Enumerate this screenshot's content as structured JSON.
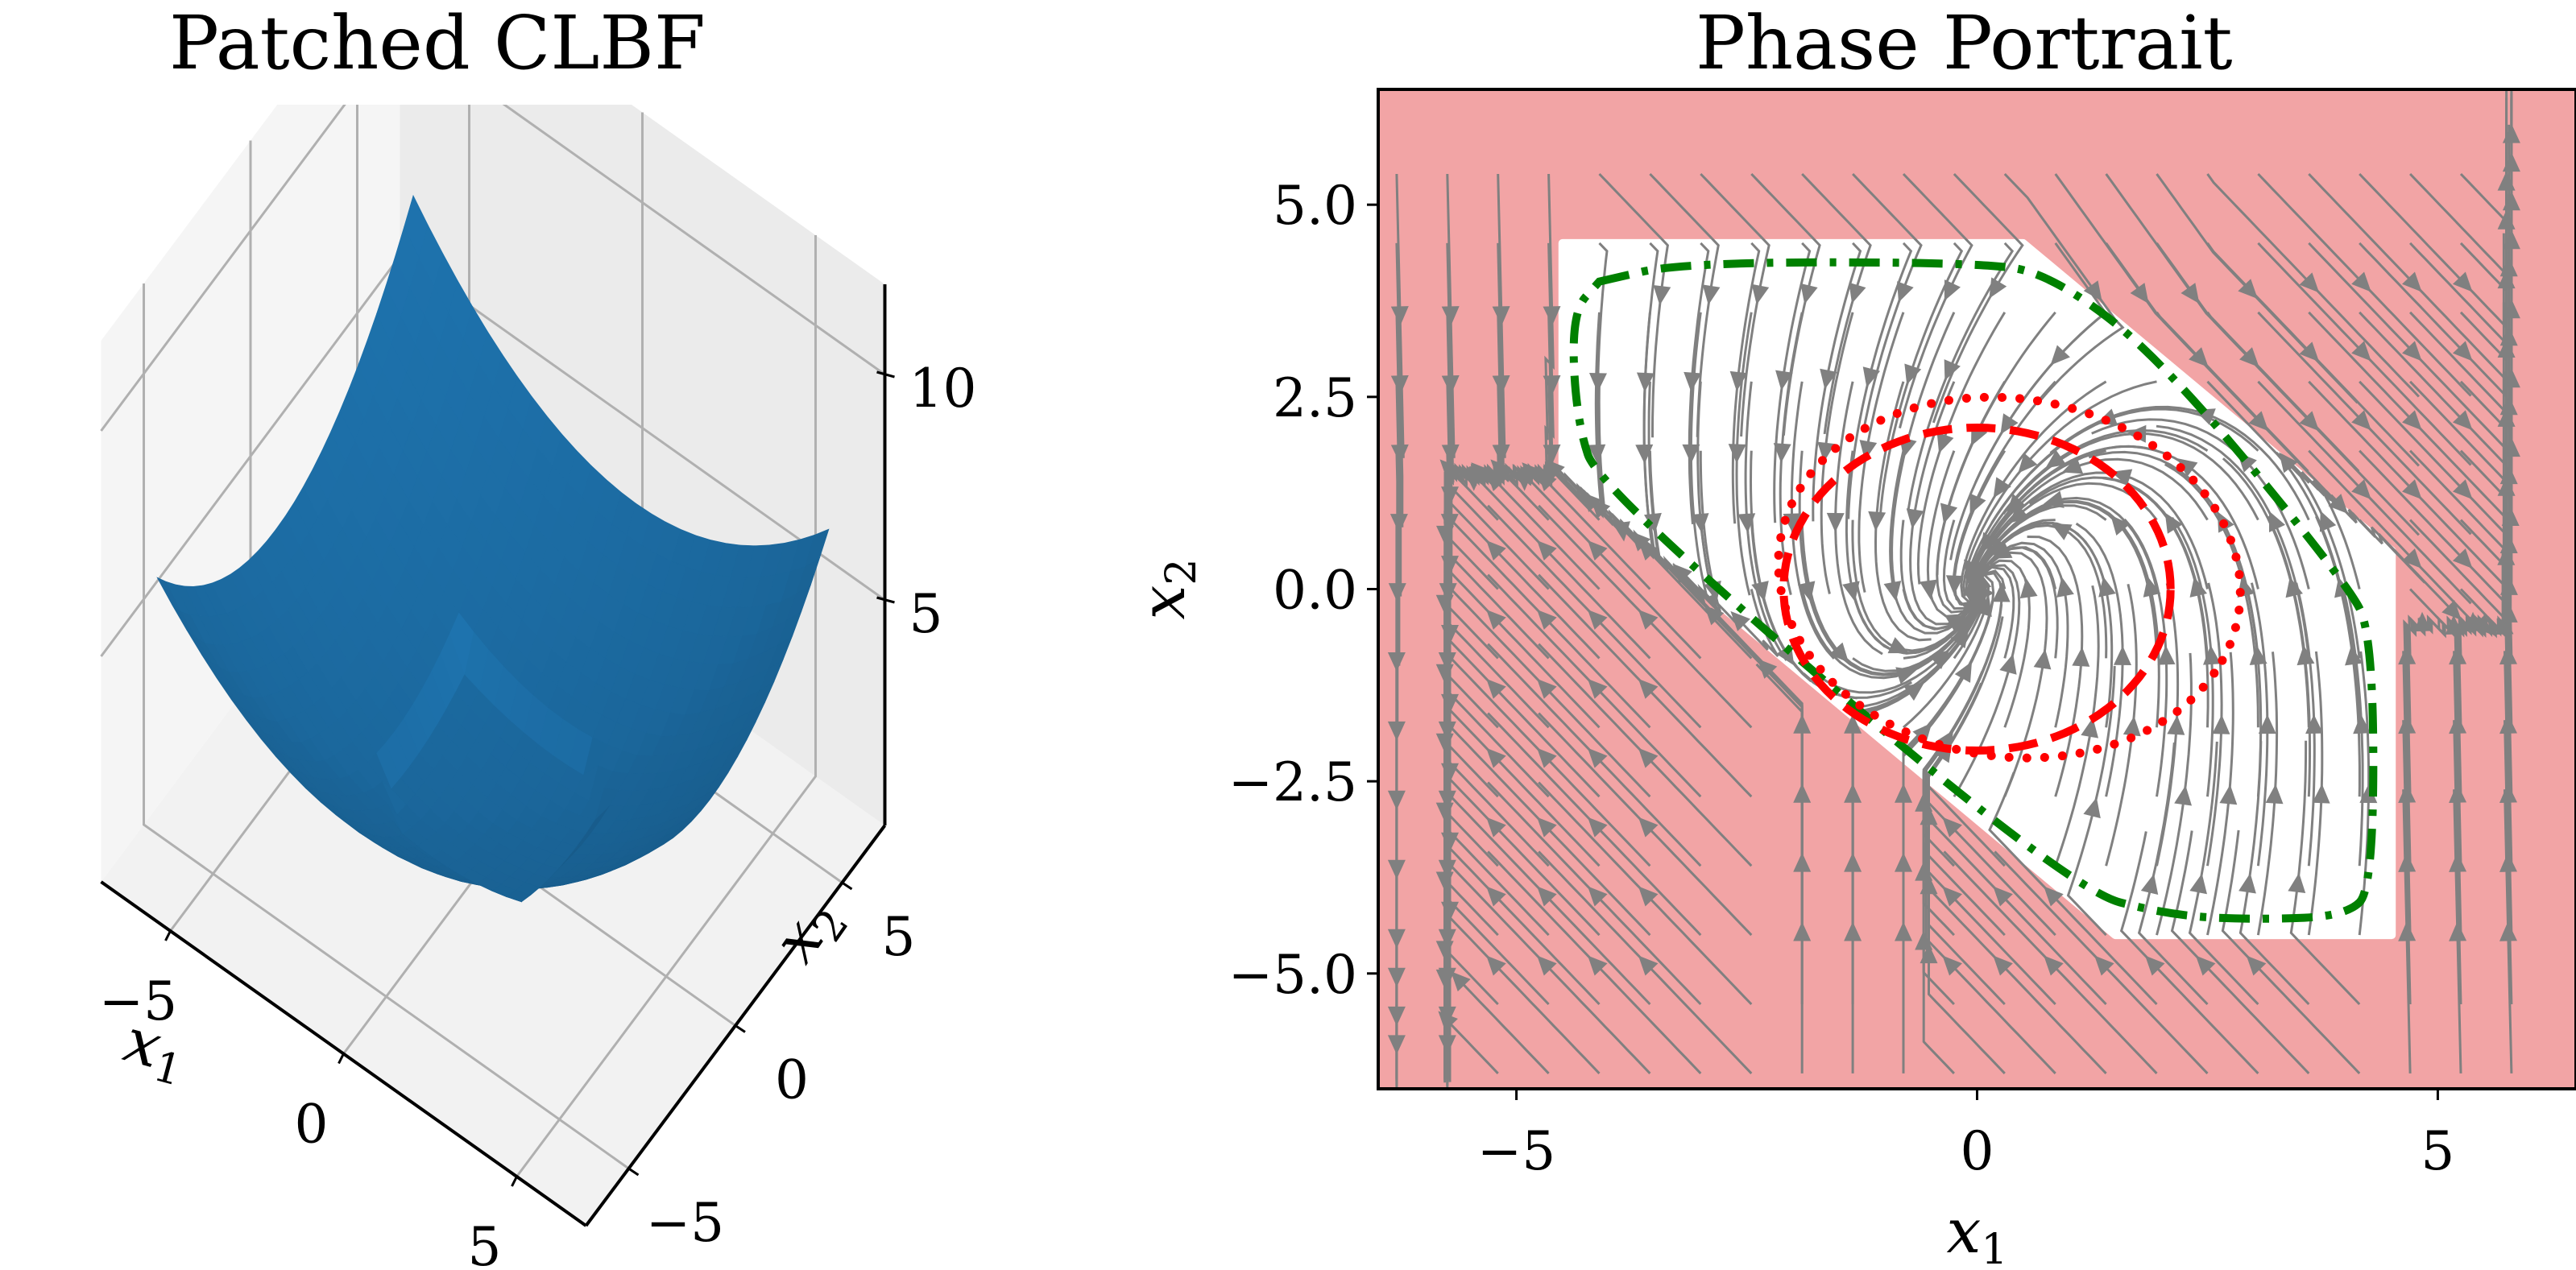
{
  "chart_data": [
    {
      "type": "surface3d",
      "title": "Patched CLBF",
      "xlabel": "x",
      "xlabel_sub": "1",
      "ylabel": "x",
      "ylabel_sub": "2",
      "x_ticks": [
        "−5",
        "0",
        "5"
      ],
      "x_tick_values": [
        -5,
        0,
        5
      ],
      "y_ticks": [
        "−5",
        "0",
        "5"
      ],
      "y_tick_values": [
        -5,
        0,
        5
      ],
      "z_ticks": [
        "5",
        "10"
      ],
      "z_tick_values": [
        5,
        10
      ],
      "xlim": [
        -7,
        7
      ],
      "ylim": [
        -7,
        7
      ],
      "zlim": [
        0,
        12
      ],
      "surface_color": "#1f77b4",
      "description": "Bowl-shaped CLBF surface with minimum near origin, rising to ~11 at corners; patched octagonal flat region near bottom"
    },
    {
      "type": "streamplot",
      "title": "Phase Portrait",
      "xlabel": "x",
      "xlabel_sub": "1",
      "ylabel": "x",
      "ylabel_sub": "2",
      "x_ticks": [
        "−5",
        "0",
        "5"
      ],
      "x_tick_values": [
        -5,
        0,
        5
      ],
      "y_ticks": [
        "5.0",
        "2.5",
        "0.0",
        "−2.5",
        "−5.0"
      ],
      "y_tick_values": [
        5.0,
        2.5,
        0.0,
        -2.5,
        -5.0
      ],
      "xlim": [
        -6.5,
        6.5
      ],
      "ylim": [
        -6.5,
        6.5
      ],
      "unsafe_color": "#f2a4a5",
      "safe_color": "#ffffff",
      "stream_color": "#808080",
      "safe_region_polygon": [
        [
          -4.5,
          4.5
        ],
        [
          0.5,
          4.5
        ],
        [
          4.5,
          0.5
        ],
        [
          4.5,
          -4.5
        ],
        [
          1.5,
          -4.5
        ],
        [
          -4.5,
          1.5
        ]
      ],
      "curves": [
        {
          "name": "certified-level-set",
          "style": "dash-dot",
          "color": "#008000",
          "points": [
            [
              -4.1,
              4.0
            ],
            [
              -3.2,
              4.25
            ],
            [
              0.0,
              4.25
            ],
            [
              0.8,
              4.1
            ],
            [
              2.0,
              3.0
            ],
            [
              4.0,
              0.1
            ],
            [
              4.3,
              -0.6
            ],
            [
              4.3,
              -3.9
            ],
            [
              4.0,
              -4.25
            ],
            [
              3.1,
              -4.3
            ],
            [
              2.1,
              -4.25
            ],
            [
              1.0,
              -3.9
            ],
            [
              -4.1,
              1.3
            ],
            [
              -4.35,
              2.2
            ],
            [
              -4.4,
              3.6
            ]
          ]
        },
        {
          "name": "dashed-ellipse",
          "style": "dashed",
          "color": "#ff0000",
          "center": [
            0.0,
            0.0
          ],
          "rx": 2.1,
          "ry": 2.1,
          "rotation_deg": 0
        },
        {
          "name": "dotted-ellipse",
          "style": "dotted",
          "color": "#ff0000",
          "center": [
            0.35,
            0.15
          ],
          "rx": 2.55,
          "ry": 2.3,
          "rotation_deg": -25
        }
      ]
    }
  ]
}
